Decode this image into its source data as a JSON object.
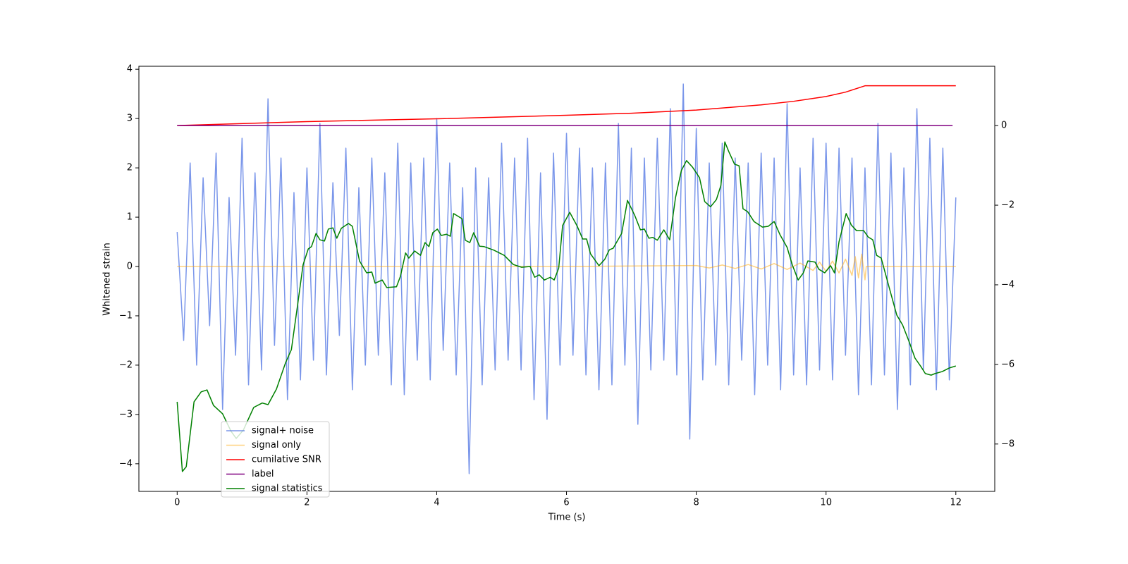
{
  "chart_data": {
    "type": "line",
    "xlabel": "Time (s)",
    "ylabel": "Whitened strain",
    "xlim": [
      -0.59,
      12.6
    ],
    "ylim": [
      -4.56,
      4.06
    ],
    "y2lim": [
      -9.19,
      1.49
    ],
    "xticks": [
      0,
      2,
      4,
      6,
      8,
      10,
      12
    ],
    "yticks": [
      {
        "value": -4,
        "label": "−4"
      },
      {
        "value": -3,
        "label": "−3"
      },
      {
        "value": -2,
        "label": "−2"
      },
      {
        "value": -1,
        "label": "−1"
      },
      0,
      1,
      2,
      3,
      4
    ],
    "y2ticks": [
      {
        "value": -8,
        "label": "−8"
      },
      {
        "value": -6,
        "label": "−6"
      },
      {
        "value": -4,
        "label": "−4"
      },
      {
        "value": -2,
        "label": "−2"
      },
      0
    ],
    "series": [
      {
        "name": "signal+ noise",
        "color": "#4169e1",
        "axis": "y",
        "x": [
          0,
          0.1,
          0.2,
          0.3,
          0.4,
          0.5,
          0.6,
          0.7,
          0.8,
          0.9,
          1,
          1.1,
          1.2,
          1.3,
          1.4,
          1.5,
          1.6,
          1.7,
          1.8,
          1.9,
          2,
          2.1,
          2.2,
          2.3,
          2.4,
          2.5,
          2.6,
          2.7,
          2.8,
          2.9,
          3,
          3.1,
          3.2,
          3.3,
          3.4,
          3.5,
          3.6,
          3.7,
          3.8,
          3.9,
          4,
          4.1,
          4.2,
          4.3,
          4.4,
          4.5,
          4.6,
          4.7,
          4.8,
          4.9,
          5,
          5.1,
          5.2,
          5.3,
          5.4,
          5.5,
          5.6,
          5.7,
          5.8,
          5.9,
          6,
          6.1,
          6.2,
          6.3,
          6.4,
          6.5,
          6.6,
          6.7,
          6.8,
          6.9,
          7,
          7.1,
          7.2,
          7.3,
          7.4,
          7.5,
          7.6,
          7.7,
          7.8,
          7.9,
          8,
          8.1,
          8.2,
          8.3,
          8.4,
          8.5,
          8.6,
          8.7,
          8.8,
          8.9,
          9,
          9.1,
          9.2,
          9.3,
          9.4,
          9.5,
          9.6,
          9.7,
          9.8,
          9.9,
          10,
          10.1,
          10.2,
          10.3,
          10.4,
          10.5,
          10.6,
          10.7,
          10.8,
          10.9,
          11,
          11.1,
          11.2,
          11.3,
          11.4,
          11.5,
          11.6,
          11.7,
          11.8,
          11.9,
          12
        ],
        "values": [
          0.7,
          -1.5,
          2.1,
          -2.0,
          1.8,
          -1.2,
          2.3,
          -2.9,
          1.4,
          -1.8,
          2.6,
          -2.4,
          1.9,
          -2.1,
          3.4,
          -1.6,
          2.2,
          -2.7,
          1.5,
          -2.3,
          2.0,
          -1.9,
          2.9,
          -2.2,
          1.7,
          -1.4,
          2.4,
          -2.5,
          1.6,
          -2.0,
          2.2,
          -1.8,
          1.9,
          -2.4,
          2.5,
          -2.6,
          2.1,
          -1.9,
          2.2,
          -2.3,
          3.0,
          -1.7,
          2.1,
          -2.2,
          1.6,
          -4.2,
          2.0,
          -2.4,
          1.8,
          -2.1,
          2.5,
          -1.9,
          2.2,
          -2.1,
          2.6,
          -2.7,
          1.9,
          -3.1,
          2.3,
          -2.0,
          2.7,
          -1.8,
          2.4,
          -2.2,
          2.0,
          -2.5,
          2.1,
          -2.4,
          2.9,
          -2.0,
          2.4,
          -3.2,
          2.2,
          -2.1,
          2.6,
          -1.9,
          3.2,
          -2.2,
          3.7,
          -3.5,
          2.8,
          -2.3,
          2.1,
          -2.0,
          2.5,
          -2.4,
          2.2,
          -1.9,
          2.1,
          -2.6,
          2.3,
          -2.0,
          2.2,
          -2.5,
          3.3,
          -2.2,
          2.0,
          -2.4,
          2.6,
          -2.1,
          2.5,
          -2.3,
          2.4,
          -1.8,
          2.2,
          -2.6,
          2.0,
          -2.4,
          2.9,
          -2.2,
          2.3,
          -2.9,
          2.0,
          -2.4,
          3.2,
          -2.1,
          2.6,
          -2.5,
          2.4,
          -2.3,
          1.4
        ]
      },
      {
        "name": "signal only",
        "color": "#ffa500",
        "axis": "y",
        "x": [
          0,
          6,
          8,
          8.2,
          8.4,
          8.6,
          8.8,
          9,
          9.2,
          9.4,
          9.6,
          9.8,
          9.9,
          10,
          10.1,
          10.2,
          10.3,
          10.4,
          10.45,
          10.5,
          10.55,
          10.6,
          10.62,
          12
        ],
        "values": [
          0,
          0,
          0.02,
          -0.03,
          0.03,
          -0.04,
          0.04,
          -0.05,
          0.06,
          -0.06,
          0.07,
          -0.08,
          0.09,
          -0.1,
          0.11,
          -0.13,
          0.15,
          -0.18,
          0.2,
          -0.23,
          0.25,
          -0.27,
          0,
          0
        ]
      },
      {
        "name": "cumilative SNR",
        "color": "#ff0000",
        "axis": "y2",
        "x": [
          0,
          2,
          4,
          6,
          7,
          8,
          9,
          9.5,
          10,
          10.3,
          10.6,
          12
        ],
        "values": [
          0,
          0.1,
          0.17,
          0.26,
          0.31,
          0.39,
          0.52,
          0.61,
          0.73,
          0.84,
          1.0,
          1.0
        ]
      },
      {
        "name": "label",
        "color": "#800080",
        "axis": "y2",
        "x": [
          0,
          11.95
        ],
        "values": [
          0,
          0
        ]
      },
      {
        "name": "signal statistics",
        "color": "#008000",
        "axis": "y2",
        "x": [
          0,
          0.08,
          0.14,
          0.26,
          0.37,
          0.46,
          0.56,
          0.7,
          0.83,
          0.91,
          1.02,
          1.18,
          1.31,
          1.4,
          1.53,
          1.67,
          1.76,
          1.86,
          1.94,
          2.02,
          2.07,
          2.14,
          2.2,
          2.27,
          2.33,
          2.4,
          2.46,
          2.53,
          2.64,
          2.7,
          2.81,
          2.92,
          3.0,
          3.05,
          3.16,
          3.23,
          3.38,
          3.44,
          3.52,
          3.57,
          3.66,
          3.75,
          3.82,
          3.88,
          3.94,
          4.01,
          4.07,
          4.15,
          4.21,
          4.26,
          4.39,
          4.44,
          4.51,
          4.57,
          4.66,
          4.73,
          4.88,
          5.04,
          5.18,
          5.31,
          5.44,
          5.51,
          5.58,
          5.66,
          5.75,
          5.81,
          5.88,
          5.94,
          6.05,
          6.16,
          6.25,
          6.31,
          6.37,
          6.5,
          6.59,
          6.66,
          6.72,
          6.85,
          6.94,
          7.05,
          7.14,
          7.2,
          7.27,
          7.33,
          7.4,
          7.5,
          7.59,
          7.68,
          7.77,
          7.85,
          7.94,
          8.05,
          8.13,
          8.22,
          8.31,
          8.38,
          8.44,
          8.5,
          8.59,
          8.66,
          8.72,
          8.79,
          8.89,
          9.02,
          9.11,
          9.2,
          9.29,
          9.4,
          9.48,
          9.57,
          9.65,
          9.72,
          9.83,
          9.89,
          9.98,
          10.07,
          10.13,
          10.2,
          10.31,
          10.39,
          10.47,
          10.58,
          10.65,
          10.72,
          10.78,
          10.85,
          10.98,
          11.09,
          11.18,
          11.29,
          11.37,
          11.46,
          11.53,
          11.62,
          11.68,
          11.79,
          11.9,
          12.0
        ],
        "values": [
          -6.94,
          -8.69,
          -8.57,
          -6.94,
          -6.69,
          -6.64,
          -7.03,
          -7.24,
          -7.68,
          -7.86,
          -7.65,
          -7.08,
          -6.97,
          -7.01,
          -6.62,
          -5.96,
          -5.63,
          -4.46,
          -3.5,
          -3.1,
          -3.04,
          -2.71,
          -2.87,
          -2.9,
          -2.6,
          -2.57,
          -2.83,
          -2.58,
          -2.46,
          -2.53,
          -3.4,
          -3.7,
          -3.68,
          -3.96,
          -3.88,
          -4.07,
          -4.05,
          -3.79,
          -3.2,
          -3.33,
          -3.15,
          -3.26,
          -2.94,
          -3.04,
          -2.69,
          -2.6,
          -2.76,
          -2.73,
          -2.78,
          -2.21,
          -2.34,
          -2.88,
          -2.94,
          -2.69,
          -3.03,
          -3.04,
          -3.13,
          -3.26,
          -3.49,
          -3.56,
          -3.54,
          -3.81,
          -3.75,
          -3.88,
          -3.81,
          -3.88,
          -3.58,
          -2.51,
          -2.18,
          -2.51,
          -2.85,
          -2.85,
          -3.22,
          -3.52,
          -3.36,
          -3.12,
          -3.08,
          -2.71,
          -1.88,
          -2.25,
          -2.62,
          -2.6,
          -2.83,
          -2.81,
          -2.88,
          -2.62,
          -2.87,
          -1.81,
          -1.13,
          -0.88,
          -1.04,
          -1.31,
          -1.91,
          -2.04,
          -1.86,
          -1.5,
          -0.41,
          -0.65,
          -0.97,
          -1.01,
          -2.09,
          -2.16,
          -2.41,
          -2.55,
          -2.53,
          -2.41,
          -2.74,
          -3.06,
          -3.5,
          -3.88,
          -3.7,
          -3.4,
          -3.43,
          -3.61,
          -3.7,
          -3.52,
          -3.7,
          -2.92,
          -2.21,
          -2.5,
          -2.64,
          -2.64,
          -2.8,
          -2.87,
          -3.26,
          -3.33,
          -4.11,
          -4.76,
          -5.01,
          -5.47,
          -5.84,
          -6.05,
          -6.23,
          -6.27,
          -6.23,
          -6.18,
          -6.09,
          -6.04
        ]
      }
    ]
  }
}
